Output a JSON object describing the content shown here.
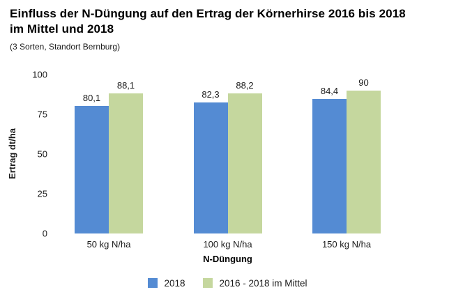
{
  "header": {
    "title_line1": "Einfluss der N-Düngung auf den Ertrag der Körnerhirse 2016 bis 2018",
    "title_line2": "im Mittel und 2018",
    "subtitle": "(3 Sorten, Standort Bernburg)"
  },
  "chart_data": {
    "type": "bar",
    "title": "Einfluss der N-Düngung auf den Ertrag der Körnerhirse 2016 bis 2018 im Mittel und 2018",
    "subtitle": "(3 Sorten, Standort Bernburg)",
    "categories": [
      "50 kg N/ha",
      "100 kg N/ha",
      "150 kg N/ha"
    ],
    "series": [
      {
        "name": "2018",
        "color": "#548BD3",
        "values": [
          80.1,
          82.3,
          84.4
        ]
      },
      {
        "name": "2016 - 2018 im Mittel",
        "color": "#C5D79E",
        "values": [
          88.1,
          88.2,
          90
        ]
      }
    ],
    "xlabel": "N-Düngung",
    "ylabel": "Ertrag dt/ha",
    "ylim": [
      0,
      100
    ],
    "yticks": [
      0,
      25,
      50,
      75,
      100
    ],
    "grid": false,
    "legend_position": "bottom",
    "decimal_separator": ","
  }
}
